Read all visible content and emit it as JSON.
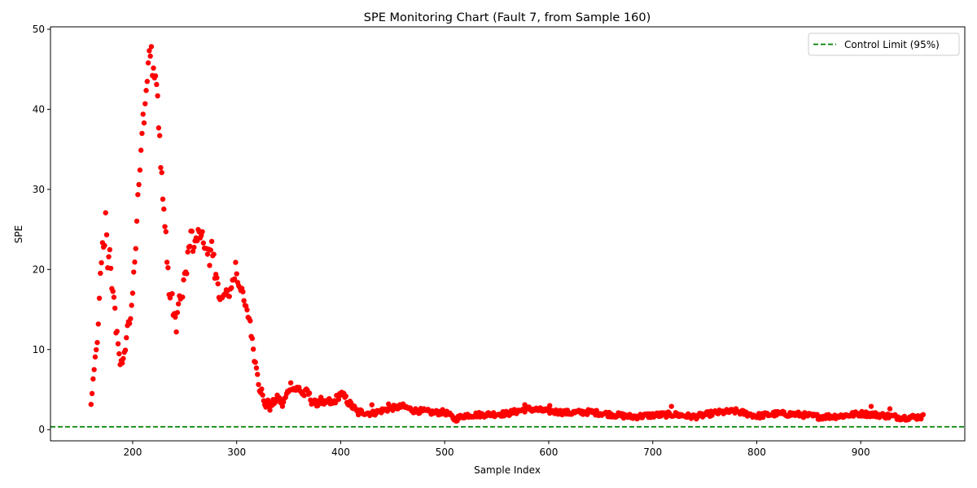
{
  "chart_data": {
    "type": "scatter",
    "title": "SPE Monitoring Chart (Fault 7, from Sample 160)",
    "xlabel": "Sample Index",
    "ylabel": "SPE",
    "xlim": [
      121,
      1000
    ],
    "ylim": [
      -1.4,
      50.3
    ],
    "xticks": [
      200,
      300,
      400,
      500,
      600,
      700,
      800,
      900
    ],
    "yticks": [
      0,
      10,
      20,
      30,
      40,
      50
    ],
    "grid": false,
    "legend": {
      "position": "top-right",
      "entries": [
        "Control Limit (95%)"
      ]
    },
    "control_limit": 0.35,
    "series": [
      {
        "color": "#ff0000",
        "x_start": 160,
        "x_end": 960,
        "keypoints": [
          [
            160,
            3.0
          ],
          [
            161,
            4.7
          ],
          [
            162,
            6.2
          ],
          [
            163,
            7.0
          ],
          [
            164,
            8.9
          ],
          [
            165,
            9.8
          ],
          [
            166,
            11.2
          ],
          [
            167,
            12.8
          ],
          [
            168,
            16.2
          ],
          [
            169,
            19.2
          ],
          [
            170,
            20.6
          ],
          [
            171,
            23.5
          ],
          [
            172,
            22.5
          ],
          [
            173,
            23.3
          ],
          [
            174,
            27.0
          ],
          [
            175,
            24.6
          ],
          [
            176,
            20.5
          ],
          [
            178,
            22.1
          ],
          [
            179,
            19.8
          ],
          [
            180,
            18.0
          ],
          [
            181,
            17.3
          ],
          [
            182,
            16.3
          ],
          [
            183,
            15.3
          ],
          [
            184,
            12.3
          ],
          [
            185,
            12.4
          ],
          [
            186,
            10.3
          ],
          [
            187,
            9.1
          ],
          [
            188,
            8.2
          ],
          [
            189,
            8.7
          ],
          [
            190,
            8.0
          ],
          [
            191,
            9.2
          ],
          [
            192,
            10.0
          ],
          [
            193,
            10.1
          ],
          [
            194,
            11.6
          ],
          [
            195,
            13.0
          ],
          [
            196,
            13.0
          ],
          [
            197,
            13.3
          ],
          [
            198,
            13.6
          ],
          [
            199,
            15.8
          ],
          [
            200,
            17.1
          ],
          [
            201,
            19.3
          ],
          [
            202,
            20.6
          ],
          [
            203,
            22.8
          ],
          [
            204,
            26.0
          ],
          [
            205,
            29.0
          ],
          [
            206,
            30.4
          ],
          [
            207,
            32.8
          ],
          [
            208,
            34.8
          ],
          [
            209,
            37.4
          ],
          [
            210,
            39.2
          ],
          [
            211,
            38.4
          ],
          [
            212,
            40.5
          ],
          [
            213,
            42.6
          ],
          [
            214,
            43.6
          ],
          [
            215,
            45.9
          ],
          [
            216,
            47.4
          ],
          [
            217,
            46.2
          ],
          [
            218,
            47.9
          ],
          [
            219,
            44.7
          ],
          [
            220,
            45.4
          ],
          [
            221,
            44.3
          ],
          [
            222,
            44.0
          ],
          [
            223,
            43.6
          ],
          [
            224,
            41.9
          ],
          [
            225,
            37.9
          ],
          [
            226,
            36.8
          ],
          [
            227,
            33.0
          ],
          [
            228,
            31.8
          ],
          [
            229,
            28.8
          ],
          [
            230,
            27.5
          ],
          [
            231,
            25.0
          ],
          [
            232,
            24.6
          ],
          [
            233,
            20.7
          ],
          [
            234,
            20.7
          ],
          [
            235,
            16.8
          ],
          [
            236,
            16.5
          ],
          [
            237,
            16.9
          ],
          [
            238,
            16.8
          ],
          [
            239,
            14.5
          ],
          [
            240,
            14.5
          ],
          [
            241,
            13.6
          ],
          [
            242,
            12.5
          ],
          [
            243,
            14.6
          ],
          [
            244,
            15.3
          ],
          [
            245,
            16.6
          ],
          [
            246,
            16.8
          ],
          [
            247,
            16.4
          ],
          [
            248,
            16.4
          ],
          [
            249,
            18.8
          ],
          [
            250,
            19.2
          ],
          [
            251,
            19.5
          ],
          [
            252,
            19.7
          ],
          [
            253,
            21.9
          ],
          [
            254,
            22.3
          ],
          [
            255,
            22.9
          ],
          [
            256,
            25.1
          ],
          [
            257,
            24.7
          ],
          [
            258,
            22.1
          ],
          [
            259,
            22.4
          ],
          [
            260,
            23.5
          ],
          [
            262,
            24.0
          ],
          [
            264,
            25.1
          ],
          [
            265,
            24.2
          ],
          [
            267,
            24.4
          ],
          [
            268,
            23.5
          ],
          [
            269,
            22.3
          ],
          [
            270,
            22.9
          ],
          [
            271,
            22.3
          ],
          [
            272,
            22.0
          ],
          [
            273,
            22.6
          ],
          [
            274,
            21.0
          ],
          [
            275,
            22.6
          ],
          [
            276,
            23.3
          ],
          [
            277,
            21.4
          ],
          [
            278,
            21.6
          ],
          [
            279,
            18.4
          ],
          [
            280,
            19.3
          ],
          [
            281,
            18.6
          ],
          [
            282,
            18.4
          ],
          [
            283,
            17.0
          ],
          [
            284,
            16.5
          ],
          [
            286,
            16.3
          ],
          [
            288,
            16.7
          ],
          [
            290,
            17.3
          ],
          [
            292,
            16.5
          ],
          [
            294,
            17.5
          ],
          [
            296,
            18.5
          ],
          [
            298,
            19.0
          ],
          [
            299,
            20.7
          ],
          [
            301,
            18.5
          ],
          [
            303,
            17.9
          ],
          [
            305,
            17.6
          ],
          [
            307,
            15.9
          ],
          [
            309,
            15.1
          ],
          [
            311,
            14.2
          ],
          [
            313,
            13.6
          ],
          [
            314,
            12.0
          ],
          [
            315,
            11.0
          ],
          [
            316,
            10.2
          ],
          [
            317,
            9.0
          ],
          [
            318,
            8.3
          ],
          [
            320,
            7.3
          ],
          [
            321,
            6.0
          ],
          [
            322,
            5.2
          ],
          [
            324,
            4.8
          ],
          [
            326,
            3.4
          ],
          [
            328,
            3.1
          ],
          [
            330,
            3.3
          ],
          [
            332,
            2.8
          ],
          [
            336,
            3.5
          ],
          [
            340,
            4.0
          ],
          [
            344,
            3.1
          ],
          [
            348,
            4.3
          ],
          [
            352,
            5.6
          ],
          [
            356,
            5.0
          ],
          [
            360,
            5.2
          ],
          [
            364,
            4.3
          ],
          [
            368,
            4.8
          ],
          [
            372,
            3.6
          ],
          [
            376,
            3.2
          ],
          [
            380,
            3.9
          ],
          [
            384,
            3.0
          ],
          [
            388,
            3.6
          ],
          [
            392,
            3.2
          ],
          [
            396,
            3.9
          ],
          [
            400,
            4.5
          ],
          [
            404,
            4.0
          ],
          [
            408,
            3.3
          ],
          [
            412,
            2.8
          ],
          [
            416,
            2.1
          ],
          [
            420,
            2.2
          ],
          [
            430,
            2.0
          ],
          [
            440,
            2.4
          ],
          [
            450,
            2.7
          ],
          [
            460,
            2.9
          ],
          [
            470,
            2.4
          ],
          [
            480,
            2.3
          ],
          [
            490,
            2.1
          ],
          [
            500,
            2.2
          ],
          [
            510,
            1.3
          ],
          [
            520,
            1.8
          ],
          [
            540,
            1.9
          ],
          [
            560,
            2.0
          ],
          [
            580,
            2.6
          ],
          [
            600,
            2.3
          ],
          [
            620,
            2.1
          ],
          [
            640,
            2.2
          ],
          [
            660,
            1.9
          ],
          [
            680,
            1.6
          ],
          [
            700,
            1.8
          ],
          [
            720,
            1.9
          ],
          [
            740,
            1.6
          ],
          [
            760,
            2.1
          ],
          [
            780,
            2.3
          ],
          [
            800,
            1.7
          ],
          [
            820,
            2.0
          ],
          [
            840,
            1.9
          ],
          [
            860,
            1.6
          ],
          [
            880,
            1.7
          ],
          [
            900,
            2.0
          ],
          [
            920,
            1.8
          ],
          [
            940,
            1.5
          ],
          [
            960,
            1.6
          ]
        ],
        "outliers": [
          [
            378,
            3.0
          ],
          [
            430,
            3.1
          ],
          [
            446,
            3.2
          ],
          [
            577,
            3.1
          ],
          [
            601,
            3.0
          ],
          [
            718,
            2.9
          ],
          [
            910,
            2.9
          ],
          [
            928,
            2.6
          ]
        ]
      }
    ]
  }
}
